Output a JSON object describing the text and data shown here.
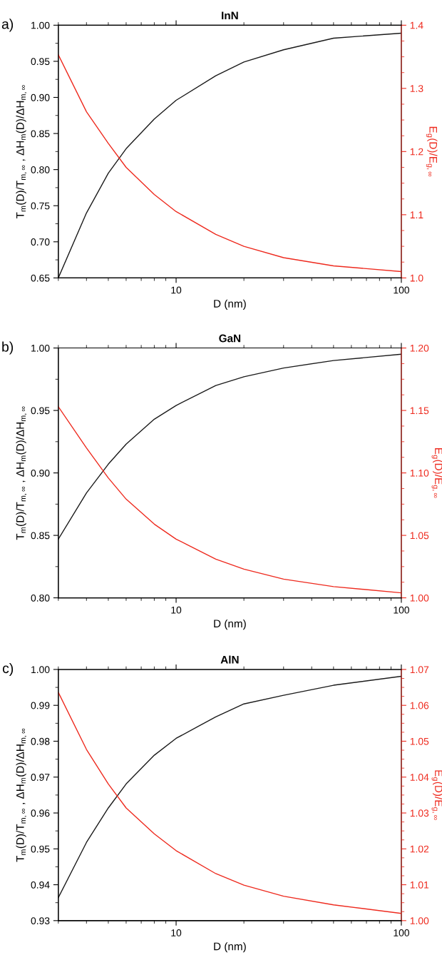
{
  "chart_data": [
    {
      "type": "line",
      "title": "InN",
      "xlabel": "D (nm)",
      "ylabel": "T$_{m}$(D)/T$_{m,∞}$ , ΔH$_{m}$(D)/ΔH$_{m,∞}$",
      "y2label": "E$_{g}$(D)/E$_{g,∞}$",
      "annotations": [
        "a)"
      ],
      "log": "x",
      "grid": false,
      "legend": false,
      "marker": "none",
      "line_style": "solid",
      "x": [
        3,
        4,
        5,
        6,
        8,
        10,
        15,
        20,
        30,
        50,
        100
      ],
      "series": [
        {
          "color": "#1a1a1a",
          "values": [
            0.65,
            0.74,
            0.795,
            0.829,
            0.87,
            0.896,
            0.93,
            0.949,
            0.966,
            0.982,
            0.989
          ]
        },
        {
          "color": "#ee2a1e",
          "axis": "y2",
          "values": [
            1.353,
            1.263,
            1.213,
            1.175,
            1.132,
            1.105,
            1.069,
            1.05,
            1.032,
            1.019,
            1.01
          ]
        }
      ],
      "xlim": [
        3,
        100
      ],
      "xticks": [
        10,
        100
      ],
      "ylim": [
        0.65,
        1.0
      ],
      "yticks": [
        0.65,
        {
          "value": 0.7,
          "label": "0.70"
        },
        0.75,
        {
          "value": 0.8,
          "label": "0.80"
        },
        0.85,
        {
          "value": 0.9,
          "label": "0.90"
        },
        0.95,
        {
          "value": 1.0,
          "label": "1.00"
        }
      ],
      "y2lim": [
        1.0,
        1.4
      ],
      "y2ticks": [
        {
          "value": 1.0,
          "label": "1.0"
        },
        1.1,
        1.2,
        1.3,
        1.4
      ]
    },
    {
      "type": "line",
      "title": "GaN",
      "xlabel": "D (nm)",
      "ylabel": "T$_{m}$(D)/T$_{m,∞}$ , ΔH$_{m}$(D)/ΔH$_{m,∞}$",
      "y2label": "E$_{g}$(D)/E$_{g,∞}$",
      "annotations": [
        "b)"
      ],
      "log": "x",
      "grid": false,
      "legend": false,
      "marker": "none",
      "line_style": "solid",
      "x": [
        3,
        4,
        5,
        6,
        8,
        10,
        15,
        20,
        30,
        50,
        100
      ],
      "series": [
        {
          "color": "#1a1a1a",
          "values": [
            0.847,
            0.884,
            0.907,
            0.923,
            0.943,
            0.954,
            0.97,
            0.977,
            0.984,
            0.99,
            0.995
          ]
        },
        {
          "color": "#ee2a1e",
          "axis": "y2",
          "values": [
            1.153,
            1.12,
            1.096,
            1.079,
            1.059,
            1.047,
            1.031,
            1.023,
            1.015,
            1.009,
            1.004
          ]
        }
      ],
      "xlim": [
        3,
        100
      ],
      "xticks": [
        10,
        100
      ],
      "ylim": [
        0.8,
        1.0
      ],
      "yticks": [
        {
          "value": 0.8,
          "label": "0.80"
        },
        0.85,
        {
          "value": 0.9,
          "label": "0.90"
        },
        0.95,
        {
          "value": 1.0,
          "label": "1.00"
        }
      ],
      "y2lim": [
        1.0,
        1.2
      ],
      "y2ticks": [
        {
          "value": 1.0,
          "label": "1.00"
        },
        1.05,
        {
          "value": 1.1,
          "label": "1.10"
        },
        1.15,
        {
          "value": 1.2,
          "label": "1.20"
        }
      ]
    },
    {
      "type": "line",
      "title": "AlN",
      "xlabel": "D (nm)",
      "ylabel": "T$_{m}$(D)/T$_{m,∞}$ , ΔH$_{m}$(D)/ΔH$_{m,∞}$",
      "y2label": "E$_{g}$(D)/E$_{g,∞}$",
      "annotations": [
        "c)"
      ],
      "log": "x",
      "grid": false,
      "legend": false,
      "marker": "none",
      "line_style": "solid",
      "x": [
        3,
        4,
        5,
        6,
        8,
        10,
        15,
        20,
        30,
        50,
        100
      ],
      "series": [
        {
          "color": "#1a1a1a",
          "values": [
            0.9364,
            0.9518,
            0.9614,
            0.9681,
            0.9761,
            0.9808,
            0.9868,
            0.9904,
            0.9928,
            0.9956,
            0.9981
          ]
        },
        {
          "color": "#ee2a1e",
          "axis": "y2",
          "values": [
            1.0636,
            1.0477,
            1.0381,
            1.0314,
            1.0242,
            1.0195,
            1.0131,
            1.0099,
            1.0068,
            1.0044,
            1.002
          ]
        }
      ],
      "xlim": [
        3,
        100
      ],
      "xticks": [
        10,
        100
      ],
      "ylim": [
        0.93,
        1.0
      ],
      "yticks": [
        0.93,
        0.94,
        0.95,
        0.96,
        0.97,
        0.98,
        0.99,
        {
          "value": 1.0,
          "label": "1.00"
        }
      ],
      "y2lim": [
        1.0,
        1.07
      ],
      "y2ticks": [
        {
          "value": 1.0,
          "label": "1.00"
        },
        1.01,
        1.02,
        1.03,
        1.04,
        1.05,
        1.06,
        1.07
      ]
    }
  ]
}
